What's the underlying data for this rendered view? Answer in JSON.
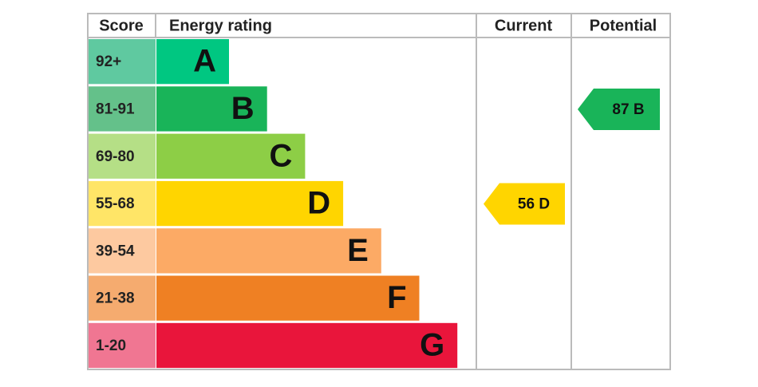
{
  "headers": {
    "score": "Score",
    "rating": "Energy rating",
    "current": "Current",
    "potential": "Potential"
  },
  "bands": [
    {
      "score": "92+",
      "letter": "A",
      "color": "#00c781",
      "light": "#5fc9a0"
    },
    {
      "score": "81-91",
      "letter": "B",
      "color": "#19b459",
      "light": "#64c18a"
    },
    {
      "score": "69-80",
      "letter": "C",
      "color": "#8dce46",
      "light": "#b5df86"
    },
    {
      "score": "55-68",
      "letter": "D",
      "color": "#ffd500",
      "light": "#ffe567"
    },
    {
      "score": "39-54",
      "letter": "E",
      "color": "#fcaa65",
      "light": "#fdc9a0"
    },
    {
      "score": "21-38",
      "letter": "F",
      "color": "#ef8023",
      "light": "#f5ab6f"
    },
    {
      "score": "1-20",
      "letter": "G",
      "color": "#e9153b",
      "light": "#f07692"
    }
  ],
  "current": {
    "value": 56,
    "letter": "D"
  },
  "potential": {
    "value": 87,
    "letter": "B"
  }
}
